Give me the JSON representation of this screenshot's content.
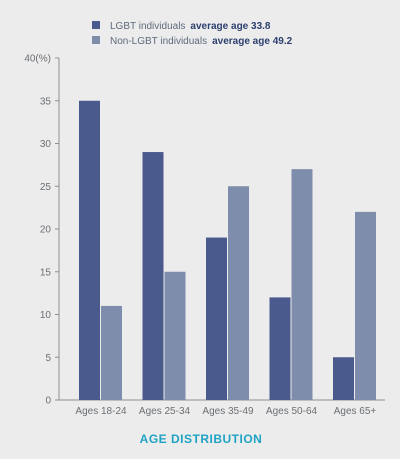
{
  "chart_data": {
    "type": "bar",
    "title": "AGE DISTRIBUTION",
    "y_unit_label": "40(%)",
    "ylim": [
      0,
      40
    ],
    "yticks": [
      0,
      5,
      10,
      15,
      20,
      25,
      30,
      35
    ],
    "grid": false,
    "legend_position": "top-left",
    "categories": [
      "Ages 18-24",
      "Ages 25-34",
      "Ages 35-49",
      "Ages 50-64",
      "Ages 65+"
    ],
    "series": [
      {
        "name": "LGBT individuals",
        "note": "average age 33.8",
        "color": "#4a5a8c",
        "values": [
          35,
          29,
          19,
          12,
          5
        ]
      },
      {
        "name": "Non-LGBT individuals",
        "note": "average age 49.2",
        "color": "#7f8dac",
        "values": [
          11,
          15,
          25,
          27,
          22
        ]
      }
    ]
  }
}
